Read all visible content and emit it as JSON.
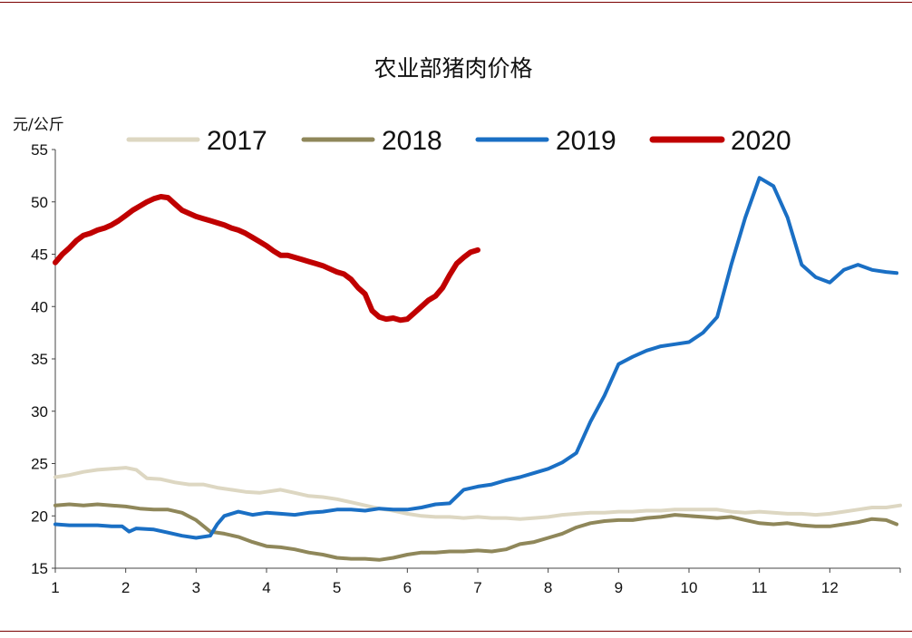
{
  "chart_data": {
    "type": "line",
    "title": "农业部猪肉价格",
    "unit_label": "元/公斤",
    "ylim": [
      15,
      55
    ],
    "yticks": [
      15,
      20,
      25,
      30,
      35,
      40,
      45,
      50,
      55
    ],
    "xlim": [
      1,
      13
    ],
    "xticks": [
      1,
      2,
      3,
      4,
      5,
      6,
      7,
      8,
      9,
      10,
      11,
      12
    ],
    "xtick_labels": [
      "1",
      "2",
      "3",
      "4",
      "5",
      "6",
      "7",
      "8",
      "9",
      "10",
      "11",
      "12"
    ],
    "legend_position": "top",
    "series": [
      {
        "name": "2017",
        "color": "#ddd7c2",
        "x": [
          1.0,
          1.2,
          1.4,
          1.6,
          1.8,
          2.0,
          2.15,
          2.3,
          2.5,
          2.7,
          2.9,
          3.1,
          3.3,
          3.5,
          3.7,
          3.9,
          4.0,
          4.2,
          4.4,
          4.6,
          4.8,
          5.0,
          5.2,
          5.4,
          5.6,
          5.8,
          6.0,
          6.2,
          6.4,
          6.6,
          6.8,
          7.0,
          7.2,
          7.4,
          7.6,
          7.8,
          8.0,
          8.2,
          8.4,
          8.6,
          8.8,
          9.0,
          9.2,
          9.4,
          9.6,
          9.8,
          10.0,
          10.2,
          10.4,
          10.6,
          10.8,
          11.0,
          11.2,
          11.4,
          11.6,
          11.8,
          12.0,
          12.2,
          12.4,
          12.6,
          12.8,
          13.0
        ],
        "values": [
          23.7,
          23.9,
          24.2,
          24.4,
          24.5,
          24.6,
          24.4,
          23.6,
          23.5,
          23.2,
          23.0,
          23.0,
          22.7,
          22.5,
          22.3,
          22.2,
          22.3,
          22.5,
          22.2,
          21.9,
          21.8,
          21.6,
          21.3,
          21.0,
          20.7,
          20.5,
          20.2,
          20.0,
          19.9,
          19.9,
          19.8,
          19.9,
          19.8,
          19.8,
          19.7,
          19.8,
          19.9,
          20.1,
          20.2,
          20.3,
          20.3,
          20.4,
          20.4,
          20.5,
          20.5,
          20.6,
          20.6,
          20.6,
          20.6,
          20.4,
          20.3,
          20.4,
          20.3,
          20.2,
          20.2,
          20.1,
          20.2,
          20.4,
          20.6,
          20.8,
          20.8,
          21.0
        ]
      },
      {
        "name": "2018",
        "color": "#8f875a",
        "x": [
          1.0,
          1.2,
          1.4,
          1.6,
          1.8,
          2.0,
          2.2,
          2.4,
          2.6,
          2.8,
          3.0,
          3.2,
          3.4,
          3.6,
          3.8,
          4.0,
          4.2,
          4.4,
          4.6,
          4.8,
          5.0,
          5.2,
          5.4,
          5.6,
          5.8,
          6.0,
          6.2,
          6.4,
          6.6,
          6.8,
          7.0,
          7.2,
          7.4,
          7.6,
          7.8,
          8.0,
          8.2,
          8.4,
          8.6,
          8.8,
          9.0,
          9.2,
          9.4,
          9.6,
          9.8,
          10.0,
          10.2,
          10.4,
          10.6,
          10.8,
          11.0,
          11.2,
          11.4,
          11.6,
          11.8,
          12.0,
          12.2,
          12.4,
          12.6,
          12.8,
          12.95
        ],
        "values": [
          21.0,
          21.1,
          21.0,
          21.1,
          21.0,
          20.9,
          20.7,
          20.6,
          20.6,
          20.3,
          19.6,
          18.5,
          18.3,
          18.0,
          17.5,
          17.1,
          17.0,
          16.8,
          16.5,
          16.3,
          16.0,
          15.9,
          15.9,
          15.8,
          16.0,
          16.3,
          16.5,
          16.5,
          16.6,
          16.6,
          16.7,
          16.6,
          16.8,
          17.3,
          17.5,
          17.9,
          18.3,
          18.9,
          19.3,
          19.5,
          19.6,
          19.6,
          19.8,
          19.9,
          20.1,
          20.0,
          19.9,
          19.8,
          19.9,
          19.6,
          19.3,
          19.2,
          19.3,
          19.1,
          19.0,
          19.0,
          19.2,
          19.4,
          19.7,
          19.6,
          19.2
        ]
      },
      {
        "name": "2019",
        "color": "#1a6fc4",
        "x": [
          1.0,
          1.2,
          1.4,
          1.6,
          1.8,
          1.95,
          2.05,
          2.15,
          2.4,
          2.6,
          2.8,
          3.0,
          3.2,
          3.3,
          3.4,
          3.6,
          3.8,
          4.0,
          4.2,
          4.4,
          4.6,
          4.8,
          5.0,
          5.2,
          5.4,
          5.6,
          5.8,
          6.0,
          6.2,
          6.4,
          6.6,
          6.8,
          7.0,
          7.2,
          7.4,
          7.6,
          7.8,
          8.0,
          8.2,
          8.4,
          8.6,
          8.8,
          9.0,
          9.2,
          9.4,
          9.6,
          9.8,
          10.0,
          10.2,
          10.4,
          10.6,
          10.8,
          11.0,
          11.2,
          11.4,
          11.6,
          11.8,
          12.0,
          12.2,
          12.4,
          12.6,
          12.8,
          12.95
        ],
        "values": [
          19.2,
          19.1,
          19.1,
          19.1,
          19.0,
          19.0,
          18.5,
          18.8,
          18.7,
          18.4,
          18.1,
          17.9,
          18.1,
          19.2,
          20.0,
          20.4,
          20.1,
          20.3,
          20.2,
          20.1,
          20.3,
          20.4,
          20.6,
          20.6,
          20.5,
          20.7,
          20.6,
          20.6,
          20.8,
          21.1,
          21.2,
          22.5,
          22.8,
          23.0,
          23.4,
          23.7,
          24.1,
          24.5,
          25.1,
          26.0,
          29.0,
          31.5,
          34.5,
          35.2,
          35.8,
          36.2,
          36.4,
          36.6,
          37.5,
          39.0,
          44.0,
          48.5,
          52.3,
          51.5,
          48.5,
          44.0,
          42.8,
          42.3,
          43.5,
          44.0,
          43.5,
          43.3,
          43.2
        ]
      },
      {
        "name": "2020",
        "color": "#c00000",
        "x": [
          1.0,
          1.1,
          1.2,
          1.3,
          1.4,
          1.5,
          1.6,
          1.7,
          1.8,
          1.9,
          2.0,
          2.1,
          2.2,
          2.3,
          2.4,
          2.5,
          2.6,
          2.7,
          2.8,
          2.9,
          3.0,
          3.1,
          3.2,
          3.3,
          3.4,
          3.5,
          3.6,
          3.7,
          3.8,
          3.9,
          4.0,
          4.1,
          4.2,
          4.3,
          4.4,
          4.5,
          4.6,
          4.7,
          4.8,
          4.9,
          5.0,
          5.1,
          5.2,
          5.3,
          5.4,
          5.5,
          5.6,
          5.7,
          5.8,
          5.9,
          6.0,
          6.1,
          6.2,
          6.3,
          6.4,
          6.5,
          6.6,
          6.7,
          6.8,
          6.9,
          7.0
        ],
        "values": [
          44.2,
          45.0,
          45.6,
          46.3,
          46.8,
          47.0,
          47.3,
          47.5,
          47.8,
          48.2,
          48.7,
          49.2,
          49.6,
          50.0,
          50.3,
          50.5,
          50.4,
          49.8,
          49.2,
          48.9,
          48.6,
          48.4,
          48.2,
          48.0,
          47.8,
          47.5,
          47.3,
          47.0,
          46.6,
          46.2,
          45.8,
          45.3,
          44.9,
          44.9,
          44.7,
          44.5,
          44.3,
          44.1,
          43.9,
          43.6,
          43.3,
          43.1,
          42.6,
          41.8,
          41.2,
          39.6,
          39.0,
          38.8,
          38.9,
          38.7,
          38.8,
          39.4,
          40.0,
          40.6,
          41.0,
          41.8,
          43.0,
          44.1,
          44.7,
          45.2,
          45.4
        ]
      }
    ]
  }
}
